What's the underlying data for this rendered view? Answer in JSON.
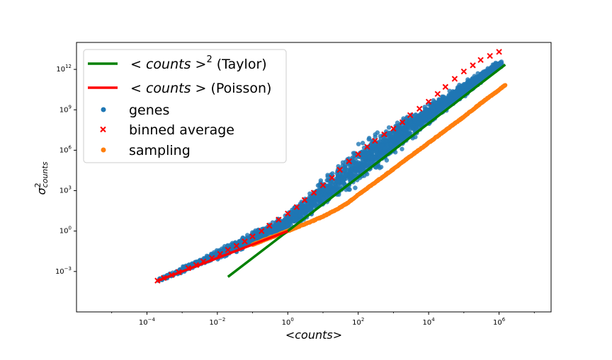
{
  "chart_data": {
    "type": "scatter",
    "xscale": "log",
    "yscale": "log",
    "xlabel": "<counts>",
    "ylabel": "σ²counts",
    "xlim": [
      1e-06,
      30000000.0
    ],
    "ylim": [
      1e-06,
      100000000000000.0
    ],
    "xticks": [
      {
        "value": 0.0001,
        "base": "10",
        "exp": "−4"
      },
      {
        "value": 0.01,
        "base": "10",
        "exp": "−2"
      },
      {
        "value": 1.0,
        "base": "10",
        "exp": "0"
      },
      {
        "value": 100.0,
        "base": "10",
        "exp": "2"
      },
      {
        "value": 10000.0,
        "base": "10",
        "exp": "4"
      },
      {
        "value": 1000000.0,
        "base": "10",
        "exp": "6"
      }
    ],
    "yticks": [
      {
        "value": 0.001,
        "base": "10",
        "exp": "−3"
      },
      {
        "value": 1.0,
        "base": "10",
        "exp": "0"
      },
      {
        "value": 1000.0,
        "base": "10",
        "exp": "3"
      },
      {
        "value": 1000000.0,
        "base": "10",
        "exp": "6"
      },
      {
        "value": 1000000000.0,
        "base": "10",
        "exp": "9"
      },
      {
        "value": 1000000000000.0,
        "base": "10",
        "exp": "12"
      }
    ],
    "legend": {
      "placement": "upper-left",
      "entries": [
        {
          "key": "taylor",
          "pre": "< ",
          "italic": "counts",
          "post": " >",
          "sup": "2",
          "suffix": " (Taylor)",
          "marker": "line",
          "color": "#008000"
        },
        {
          "key": "poisson",
          "pre": "< ",
          "italic": "counts",
          "post": " >",
          "sup": "",
          "suffix": "  (Poisson)",
          "marker": "line",
          "color": "#ff0000"
        },
        {
          "key": "genes",
          "label": "genes",
          "marker": "circle",
          "color": "#1f77b4"
        },
        {
          "key": "binned",
          "label": "binned average",
          "marker": "x",
          "color": "#ff0000"
        },
        {
          "key": "sampling",
          "label": "sampling",
          "marker": "circle",
          "color": "#ff7f0e"
        }
      ]
    },
    "series": [
      {
        "name": "< counts >² (Taylor)",
        "kind": "line",
        "color": "#008000",
        "x": [
          0.02,
          1500000.0
        ],
        "y": [
          0.0004,
          2250000000000.0
        ]
      },
      {
        "name": "< counts > (Poisson)",
        "kind": "line",
        "color": "#ff0000",
        "x": [
          0.0002,
          1
        ],
        "y": [
          0.0002,
          1
        ]
      },
      {
        "name": "genes",
        "kind": "scatter-cloud",
        "color": "#1f77b4",
        "x_range": [
          0.0002,
          1200000.0
        ],
        "upper_bound": [
          [
            0.0002,
            0.0003
          ],
          [
            0.01,
            0.05
          ],
          [
            1,
            30
          ],
          [
            100,
            5000000.0
          ],
          [
            10000.0,
            5000000000.0
          ],
          [
            1000000.0,
            5000000000000.0
          ]
        ],
        "lower_bound": [
          [
            0.0002,
            0.00015
          ],
          [
            0.01,
            0.006
          ],
          [
            1,
            0.7
          ],
          [
            100,
            1000.0
          ],
          [
            10000.0,
            50000000.0
          ],
          [
            1000000.0,
            1000000000000.0
          ]
        ]
      },
      {
        "name": "binned average",
        "kind": "scatter",
        "marker": "x",
        "color": "#ff0000",
        "x": [
          0.0002,
          0.0003,
          0.0005,
          0.0008,
          0.0015,
          0.0025,
          0.004,
          0.007,
          0.012,
          0.02,
          0.035,
          0.06,
          0.1,
          0.18,
          0.3,
          0.55,
          1,
          1.8,
          3,
          5.5,
          10,
          18,
          30,
          55,
          100,
          180,
          300,
          550,
          1000,
          1800,
          3000,
          5500,
          10000,
          18000,
          30000,
          55000,
          100000,
          180000,
          300000,
          550000,
          1000000
        ],
        "y": [
          0.00021,
          0.00033,
          0.00055,
          0.0009,
          0.0018,
          0.003,
          0.0055,
          0.01,
          0.02,
          0.04,
          0.08,
          0.17,
          0.4,
          1,
          2.5,
          7,
          20,
          60,
          200,
          700,
          2500,
          9000,
          35000,
          150000,
          500000,
          1800000,
          5000000,
          15000000,
          40000000,
          120000000,
          400000000,
          1200000000,
          4000000000,
          15000000000,
          50000000000,
          200000000000,
          700000000000,
          2000000000000,
          5000000000000,
          10000000000000,
          20000000000000
        ]
      },
      {
        "name": "sampling",
        "kind": "scatter-curve",
        "color": "#ff7f0e",
        "x": [
          0.1,
          0.2,
          0.5,
          1,
          2,
          5,
          10,
          20,
          50,
          100,
          300,
          1000,
          3000,
          10000,
          30000,
          100000,
          300000,
          1000000,
          1500000
        ],
        "y": [
          0.1,
          0.2,
          0.5,
          1,
          2.1,
          5.5,
          12,
          30,
          120,
          500,
          4000,
          40000,
          350000,
          3500000,
          30000000,
          300000000,
          3000000000,
          30000000000,
          70000000000
        ]
      }
    ]
  }
}
